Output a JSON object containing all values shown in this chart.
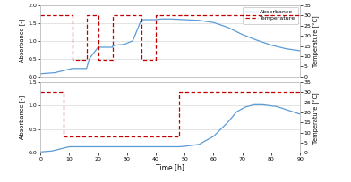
{
  "panel_A": {
    "abs_x": [
      0,
      5,
      8,
      11,
      11,
      16,
      16,
      17,
      20,
      20,
      25,
      25,
      26,
      29,
      32,
      35,
      35,
      40,
      40,
      42,
      45,
      50,
      55,
      60,
      65,
      70,
      75,
      80,
      85,
      90
    ],
    "abs_y": [
      0.07,
      0.1,
      0.16,
      0.22,
      0.22,
      0.22,
      0.22,
      0.5,
      0.82,
      0.82,
      0.82,
      0.85,
      0.88,
      0.9,
      1.0,
      1.6,
      1.6,
      1.6,
      1.6,
      1.62,
      1.62,
      1.6,
      1.58,
      1.52,
      1.38,
      1.18,
      1.02,
      0.88,
      0.78,
      0.72
    ],
    "temp_x": [
      0,
      11,
      11,
      16,
      16,
      20,
      20,
      25,
      25,
      35,
      35,
      40,
      40,
      90
    ],
    "temp_y": [
      30,
      30,
      8,
      8,
      30,
      30,
      8,
      8,
      30,
      30,
      8,
      8,
      30,
      30
    ],
    "abs_ylim": [
      0,
      2
    ],
    "temp_ylim": [
      0,
      35
    ],
    "abs_yticks": [
      0,
      0.5,
      1.0,
      1.5,
      2.0
    ],
    "temp_yticks": [
      0,
      5,
      10,
      15,
      20,
      25,
      30,
      35
    ]
  },
  "panel_B": {
    "abs_x": [
      0,
      4,
      8,
      10,
      48,
      50,
      55,
      60,
      65,
      68,
      71,
      74,
      77,
      82,
      87,
      90
    ],
    "abs_y": [
      0.02,
      0.04,
      0.1,
      0.13,
      0.13,
      0.14,
      0.18,
      0.35,
      0.65,
      0.87,
      0.97,
      1.02,
      1.02,
      0.98,
      0.88,
      0.82
    ],
    "temp_x": [
      0,
      8,
      8,
      10,
      10,
      48,
      48,
      50,
      50,
      90
    ],
    "temp_y": [
      30,
      30,
      8,
      8,
      8,
      8,
      30,
      30,
      30,
      30
    ],
    "abs_ylim": [
      0,
      1.5
    ],
    "temp_ylim": [
      0,
      35
    ],
    "abs_yticks": [
      0,
      0.5,
      1.0,
      1.5
    ],
    "temp_yticks": [
      0,
      5,
      10,
      15,
      20,
      25,
      30,
      35
    ]
  },
  "xticks": [
    0,
    10,
    20,
    30,
    40,
    50,
    60,
    70,
    80,
    90
  ],
  "xlim": [
    0,
    90
  ],
  "abs_color": "#5B9BD5",
  "temp_color": "#C00000",
  "abs_label": "Absorbance",
  "temp_label": "Temperature",
  "xlabel": "Time [h]",
  "abs_ylabel": "Absorbance [-]",
  "temp_ylabel": "Temperature [°C]",
  "grid_color": "#D0D0D0",
  "spine_color": "#C0C0C0"
}
